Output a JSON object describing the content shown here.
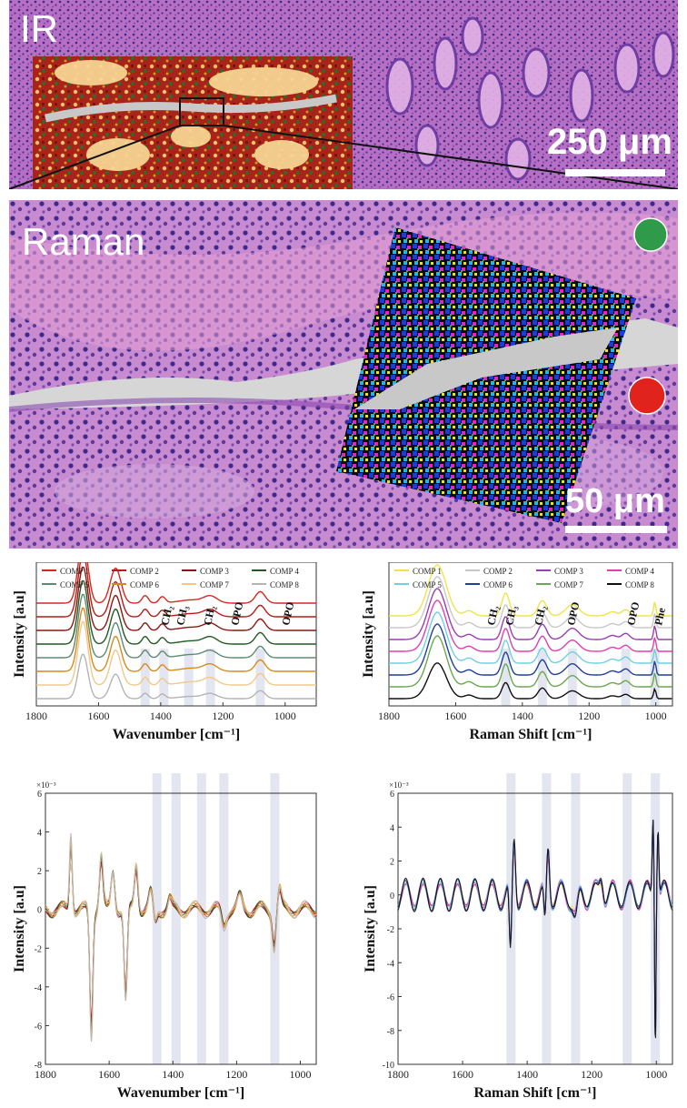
{
  "ir_panel": {
    "label": "IR",
    "scale_bar": "250 μm"
  },
  "raman_panel": {
    "label": "Raman",
    "scale_bar": "50 μm",
    "markers": {
      "top_color": "#2e9a4a",
      "bottom_color": "#e0231c"
    }
  },
  "chart_data": [
    {
      "type": "line",
      "xlabel": "Wavenumber [cm⁻¹]",
      "ylabel": "Intensity [a.u]",
      "xlim": [
        1800,
        900
      ],
      "x_ticks": [
        "1800",
        "1600",
        "1400",
        "1200",
        "1000"
      ],
      "annotations": [
        "CH₂",
        "CH₃",
        "CH₂",
        "OPO",
        "OPO"
      ],
      "legend": [
        {
          "name": "COMP 1",
          "color": "#d42a1e"
        },
        {
          "name": "COMP 2",
          "color": "#b51d16"
        },
        {
          "name": "COMP 3",
          "color": "#8c1712"
        },
        {
          "name": "COMP 4",
          "color": "#215a22"
        },
        {
          "name": "COMP 5",
          "color": "#5f8a72"
        },
        {
          "name": "COMP 6",
          "color": "#d88a1c"
        },
        {
          "name": "COMP 7",
          "color": "#f2c88a"
        },
        {
          "name": "COMP 8",
          "color": "#b4b4b4"
        }
      ],
      "highlight_bands": [
        1450,
        1390,
        1310,
        1240,
        1080
      ]
    },
    {
      "type": "line",
      "xlabel": "Raman Shift [cm⁻¹]",
      "ylabel": "Intensity [a.u]",
      "xlim": [
        1800,
        950
      ],
      "x_ticks": [
        "1800",
        "1600",
        "1400",
        "1200",
        "1000"
      ],
      "annotations": [
        "CH₂",
        "CH₃",
        "CH₂",
        "OPO",
        "OPO",
        "Phe"
      ],
      "legend": [
        {
          "name": "COMP 1",
          "color": "#f0e34a"
        },
        {
          "name": "COMP 2",
          "color": "#c8c8c8"
        },
        {
          "name": "COMP 3",
          "color": "#9a3fb0"
        },
        {
          "name": "COMP 4",
          "color": "#e03fb0"
        },
        {
          "name": "COMP 5",
          "color": "#6fd0e0"
        },
        {
          "name": "COMP 6",
          "color": "#1f3f9a"
        },
        {
          "name": "COMP 7",
          "color": "#6aa84f"
        },
        {
          "name": "COMP 8",
          "color": "#111111"
        }
      ],
      "highlight_bands": [
        1450,
        1340,
        1250,
        1090,
        1003
      ]
    },
    {
      "type": "line",
      "xlabel": "Wavenumber [cm⁻¹]",
      "ylabel": "Intensity [a.u]",
      "exponent": "×10⁻³",
      "xlim": [
        1800,
        950
      ],
      "ylim": [
        -8,
        6
      ],
      "y_ticks": [
        "6",
        "4",
        "2",
        "0",
        "-2",
        "-4",
        "-6",
        "-8"
      ],
      "x_ticks": [
        "1800",
        "1600",
        "1400",
        "1200",
        "1000"
      ],
      "highlight_bands": [
        1450,
        1390,
        1310,
        1240,
        1080
      ]
    },
    {
      "type": "line",
      "xlabel": "Raman Shift [cm⁻¹]",
      "ylabel": "Intensity [a.u]",
      "exponent": "×10⁻³",
      "xlim": [
        1800,
        950
      ],
      "ylim": [
        -10,
        6
      ],
      "y_ticks": [
        "6",
        "4",
        "2",
        "0",
        "-2",
        "-4",
        "-6",
        "-8",
        "-10"
      ],
      "x_ticks": [
        "1800",
        "1600",
        "1400",
        "1200",
        "1000"
      ],
      "highlight_bands": [
        1450,
        1340,
        1250,
        1090,
        1003
      ]
    }
  ]
}
